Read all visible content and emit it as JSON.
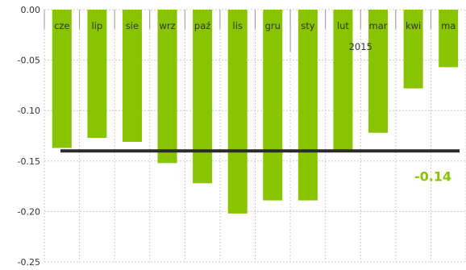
{
  "chart_data": {
    "type": "bar",
    "categories": [
      "cze",
      "lip",
      "sie",
      "wrz",
      "paź",
      "lis",
      "gru",
      "sty",
      "lut",
      "mar",
      "kwi",
      "ma"
    ],
    "values": [
      -0.137,
      -0.127,
      -0.131,
      -0.152,
      -0.172,
      -0.202,
      -0.189,
      -0.189,
      -0.141,
      -0.122,
      -0.078,
      -0.057
    ],
    "year_marker": {
      "label": "2015",
      "after_category": "gru"
    },
    "reference_line": {
      "value": -0.14,
      "label": "-0.14"
    },
    "yticks": [
      "0.00",
      "-0.05",
      "-0.10",
      "-0.15",
      "-0.20",
      "-0.25"
    ],
    "ylim": [
      -0.25,
      0
    ],
    "grid": true,
    "colors": {
      "bar": "#88c400",
      "reference_line": "#2b2b2b",
      "reference_label": "#88c400",
      "grid": "#cccccc"
    }
  }
}
